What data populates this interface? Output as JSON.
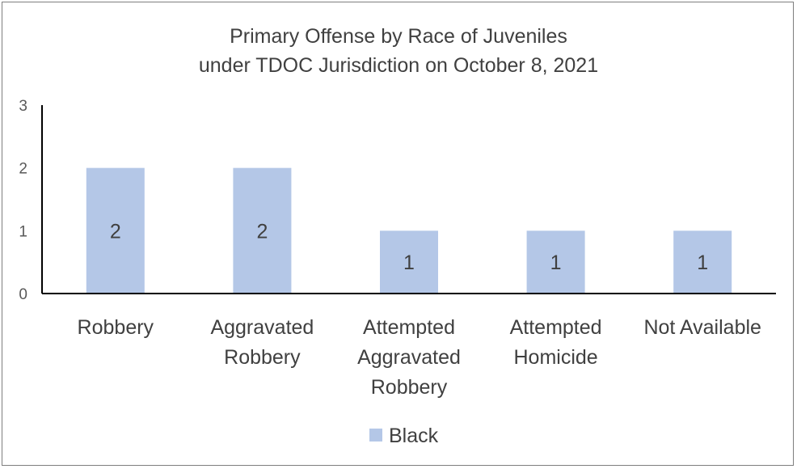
{
  "chart_data": {
    "type": "bar",
    "title": [
      "Primary Offense by Race of Juveniles",
      "under TDOC Jurisdiction on October 8, 2021"
    ],
    "xlabel": "",
    "ylabel": "",
    "ylim": [
      0,
      3
    ],
    "yticks": [
      0,
      1,
      2,
      3
    ],
    "categories": [
      [
        "Robbery"
      ],
      [
        "Aggravated",
        "Robbery"
      ],
      [
        "Attempted",
        "Aggravated",
        "Robbery"
      ],
      [
        "Attempted",
        "Homicide"
      ],
      [
        "Not Available"
      ]
    ],
    "series": [
      {
        "name": "Black",
        "values": [
          2,
          2,
          1,
          1,
          1
        ],
        "color": "#b4c7e7"
      }
    ],
    "data_labels": true,
    "grid": false,
    "legend_position": "bottom"
  }
}
